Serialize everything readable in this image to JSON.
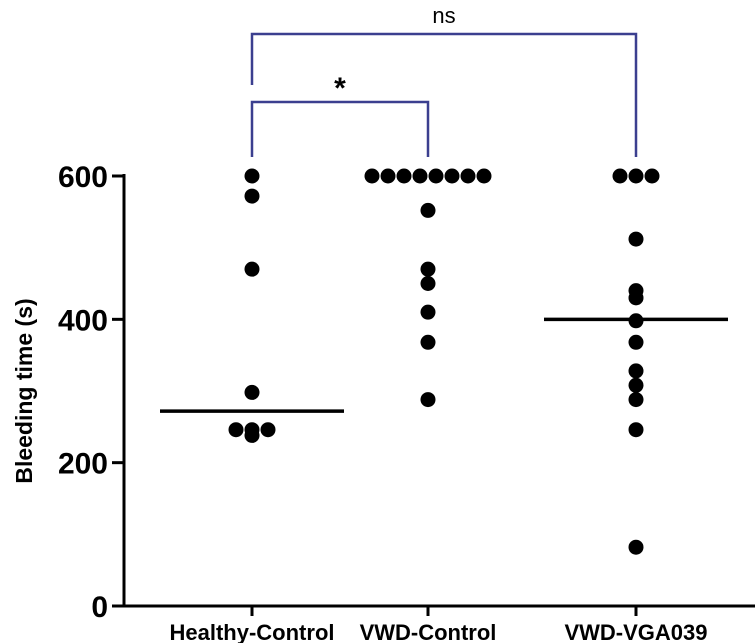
{
  "chart_data": {
    "type": "scatter",
    "ylabel": "Bleeding time (s)",
    "xlabel": "",
    "ylim": [
      0,
      600
    ],
    "yticks": [
      0,
      200,
      400,
      600
    ],
    "categories": [
      "Healthy-Control",
      "VWD-Control",
      "VWD-VGA039"
    ],
    "points": [
      {
        "category": "Healthy-Control",
        "values": [
          600,
          572,
          470,
          298,
          246,
          246,
          246,
          238
        ]
      },
      {
        "category": "VWD-Control",
        "values": [
          600,
          600,
          600,
          600,
          600,
          600,
          600,
          600,
          552,
          470,
          450,
          410,
          368,
          288
        ]
      },
      {
        "category": "VWD-VGA039",
        "values": [
          600,
          600,
          600,
          512,
          440,
          430,
          398,
          368,
          328,
          308,
          288,
          246,
          82
        ]
      }
    ],
    "medians": [
      {
        "category": "Healthy-Control",
        "value": 272
      },
      {
        "category": "VWD-VGA039",
        "value": 400
      }
    ],
    "comparisons": [
      {
        "from": "Healthy-Control",
        "to": "VWD-Control",
        "label": "*"
      },
      {
        "from": "Healthy-Control",
        "to": "VWD-VGA039",
        "label": "ns"
      }
    ],
    "colors": {
      "points": "#000000",
      "axis": "#000000",
      "brackets": "#3b3f8f"
    },
    "grid": false,
    "legend": "none"
  }
}
